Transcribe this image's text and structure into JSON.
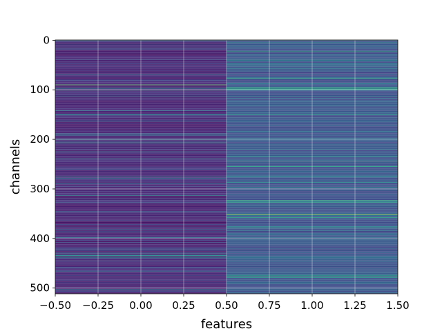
{
  "chart_data": {
    "type": "heatmap",
    "title": "",
    "xlabel": "features",
    "ylabel": "channels",
    "xlim": [
      -0.5,
      1.5
    ],
    "ylim": [
      511.5,
      -0.5
    ],
    "y_axis_inverted": true,
    "grid": true,
    "colormap": "viridis",
    "columns": [
      0,
      1
    ],
    "rows": 512,
    "xticks": [
      -0.5,
      -0.25,
      0.0,
      0.25,
      0.5,
      0.75,
      1.0,
      1.25,
      1.5
    ],
    "xtick_labels": [
      "−0.50",
      "−0.25",
      "0.00",
      "0.25",
      "0.50",
      "0.75",
      "1.00",
      "1.25",
      "1.50"
    ],
    "yticks": [
      0,
      100,
      200,
      300,
      400,
      500
    ],
    "ytick_labels": [
      "0",
      "100",
      "200",
      "300",
      "400",
      "500"
    ],
    "column_mean_intensity": [
      0.1,
      0.25
    ],
    "highlighted_rows": [
      {
        "row": 90,
        "column": 0,
        "value": 0.75
      },
      {
        "row": 200,
        "column": 0,
        "value": 0.55
      },
      {
        "row": 352,
        "column": 1,
        "value": 0.85
      },
      {
        "row": 40,
        "column": 1,
        "value": 0.55
      },
      {
        "row": 435,
        "column": 0,
        "value": 0.5
      }
    ]
  }
}
